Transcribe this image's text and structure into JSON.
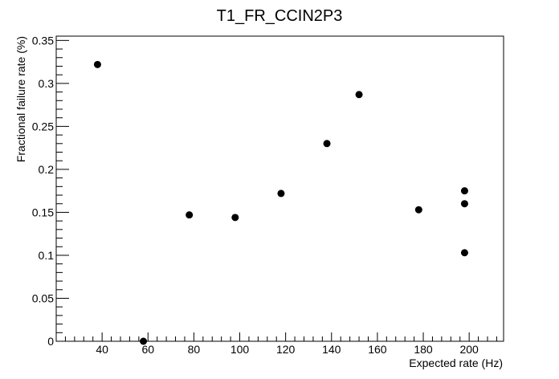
{
  "chart_data": {
    "type": "scatter",
    "title": "T1_FR_CCIN2P3",
    "xlabel": "Expected rate (Hz)",
    "ylabel": "Fractional failure rate (%)",
    "xlim": [
      20,
      215
    ],
    "ylim": [
      0,
      0.355
    ],
    "x_ticks": [
      40,
      60,
      80,
      100,
      120,
      140,
      160,
      180,
      200
    ],
    "x_tick_labels": [
      "40",
      "60",
      "80",
      "100",
      "120",
      "140",
      "160",
      "180",
      "200"
    ],
    "y_ticks": [
      0,
      0.05,
      0.1,
      0.15,
      0.2,
      0.25,
      0.3,
      0.35
    ],
    "y_tick_labels": [
      "0",
      "0.05",
      "0.1",
      "0.15",
      "0.2",
      "0.25",
      "0.3",
      "0.35"
    ],
    "grid": false,
    "marker_color": "#000000",
    "series": [
      {
        "points": [
          {
            "x": 38,
            "y": 0.322
          },
          {
            "x": 58,
            "y": 0.0
          },
          {
            "x": 78,
            "y": 0.147
          },
          {
            "x": 98,
            "y": 0.144
          },
          {
            "x": 118,
            "y": 0.172
          },
          {
            "x": 138,
            "y": 0.23
          },
          {
            "x": 152,
            "y": 0.287
          },
          {
            "x": 178,
            "y": 0.153
          },
          {
            "x": 198,
            "y": 0.175
          },
          {
            "x": 198,
            "y": 0.16
          },
          {
            "x": 198,
            "y": 0.103
          }
        ]
      }
    ]
  }
}
